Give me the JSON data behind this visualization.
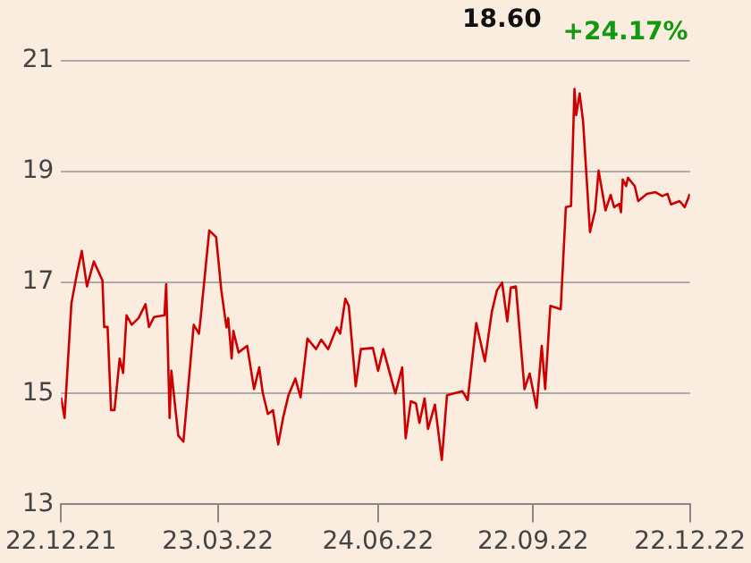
{
  "chart_data": {
    "type": "line",
    "annotations": [
      "18.60",
      "+24.17%"
    ],
    "x": [
      "2021-12-22",
      "2021-12-24",
      "2021-12-28",
      "2021-12-31",
      "2022-01-03",
      "2022-01-06",
      "2022-01-10",
      "2022-01-15",
      "2022-01-16",
      "2022-01-18",
      "2022-01-20",
      "2022-01-22",
      "2022-01-25",
      "2022-01-27",
      "2022-01-29",
      "2022-02-01",
      "2022-02-05",
      "2022-02-09",
      "2022-02-11",
      "2022-02-14",
      "2022-02-20",
      "2022-02-21",
      "2022-02-23",
      "2022-02-24",
      "2022-02-28",
      "2022-03-03",
      "2022-03-09",
      "2022-03-12",
      "2022-03-13",
      "2022-03-18",
      "2022-03-22",
      "2022-03-25",
      "2022-03-28",
      "2022-03-29",
      "2022-03-31",
      "2022-04-01",
      "2022-04-04",
      "2022-04-09",
      "2022-04-13",
      "2022-04-16",
      "2022-04-18",
      "2022-04-21",
      "2022-04-24",
      "2022-04-27",
      "2022-04-30",
      "2022-05-03",
      "2022-05-07",
      "2022-05-10",
      "2022-05-14",
      "2022-05-19",
      "2022-05-22",
      "2022-05-26",
      "2022-05-31",
      "2022-06-02",
      "2022-06-05",
      "2022-06-07",
      "2022-06-11",
      "2022-06-14",
      "2022-06-21",
      "2022-06-24",
      "2022-06-27",
      "2022-07-04",
      "2022-07-08",
      "2022-07-10",
      "2022-07-13",
      "2022-07-16",
      "2022-07-18",
      "2022-07-21",
      "2022-07-23",
      "2022-07-27",
      "2022-07-31",
      "2022-08-03",
      "2022-08-12",
      "2022-08-15",
      "2022-08-20",
      "2022-08-25",
      "2022-08-29",
      "2022-09-01",
      "2022-09-04",
      "2022-09-07",
      "2022-09-09",
      "2022-09-12",
      "2022-09-17",
      "2022-09-20",
      "2022-09-24",
      "2022-09-27",
      "2022-09-29",
      "2022-10-02",
      "2022-10-08",
      "2022-10-11",
      "2022-10-14",
      "2022-10-16",
      "2022-10-17",
      "2022-10-19",
      "2022-10-21",
      "2022-10-25",
      "2022-10-28",
      "2022-10-30",
      "2022-11-03",
      "2022-11-06",
      "2022-11-08",
      "2022-11-11",
      "2022-11-12",
      "2022-11-13",
      "2022-11-15",
      "2022-11-16",
      "2022-11-20",
      "2022-11-22",
      "2022-11-27",
      "2022-12-02",
      "2022-12-06",
      "2022-12-09",
      "2022-12-11",
      "2022-12-16",
      "2022-12-19",
      "2022-12-22"
    ],
    "series": [
      {
        "color": "#cc0000",
        "values": [
          14.93,
          14.56,
          16.63,
          17.13,
          17.57,
          16.93,
          17.38,
          17.04,
          16.2,
          16.2,
          14.7,
          14.7,
          15.63,
          15.37,
          16.41,
          16.24,
          16.36,
          16.61,
          16.2,
          16.38,
          16.41,
          16.97,
          14.56,
          15.41,
          14.24,
          14.13,
          16.24,
          16.08,
          16.36,
          17.94,
          17.82,
          16.86,
          16.19,
          16.36,
          15.63,
          16.13,
          15.74,
          15.86,
          15.08,
          15.47,
          15.02,
          14.63,
          14.7,
          14.08,
          14.58,
          14.97,
          15.27,
          14.93,
          15.99,
          15.8,
          15.97,
          15.8,
          16.19,
          16.08,
          16.71,
          16.58,
          15.13,
          15.8,
          15.82,
          15.41,
          15.8,
          15.0,
          15.47,
          14.19,
          14.86,
          14.82,
          14.47,
          14.91,
          14.36,
          14.8,
          13.8,
          14.97,
          15.04,
          14.88,
          16.27,
          15.58,
          16.47,
          16.86,
          17.0,
          16.3,
          16.91,
          16.93,
          15.08,
          15.36,
          14.74,
          15.86,
          15.08,
          16.58,
          16.52,
          18.36,
          18.38,
          20.49,
          20.02,
          20.41,
          19.91,
          17.91,
          18.3,
          19.02,
          18.3,
          18.58,
          18.36,
          18.42,
          18.27,
          18.86,
          18.74,
          18.89,
          18.74,
          18.47,
          18.6,
          18.63,
          18.56,
          18.6,
          18.41,
          18.47,
          18.36,
          18.6
        ]
      }
    ],
    "xlim": [
      "2021-12-22",
      "2022-12-22"
    ],
    "xticks": [
      {
        "value": "2021-12-22",
        "label": "22.12.21"
      },
      {
        "value": "2022-03-23",
        "label": "23.03.22"
      },
      {
        "value": "2022-06-24",
        "label": "24.06.22"
      },
      {
        "value": "2022-09-22",
        "label": "22.09.22"
      },
      {
        "value": "2022-12-22",
        "label": "22.12.22"
      }
    ],
    "ylim": [
      13,
      21
    ],
    "yticks": [
      13,
      15,
      17,
      19,
      21
    ],
    "grid": "y",
    "marker": "none",
    "line_style": "solid"
  }
}
